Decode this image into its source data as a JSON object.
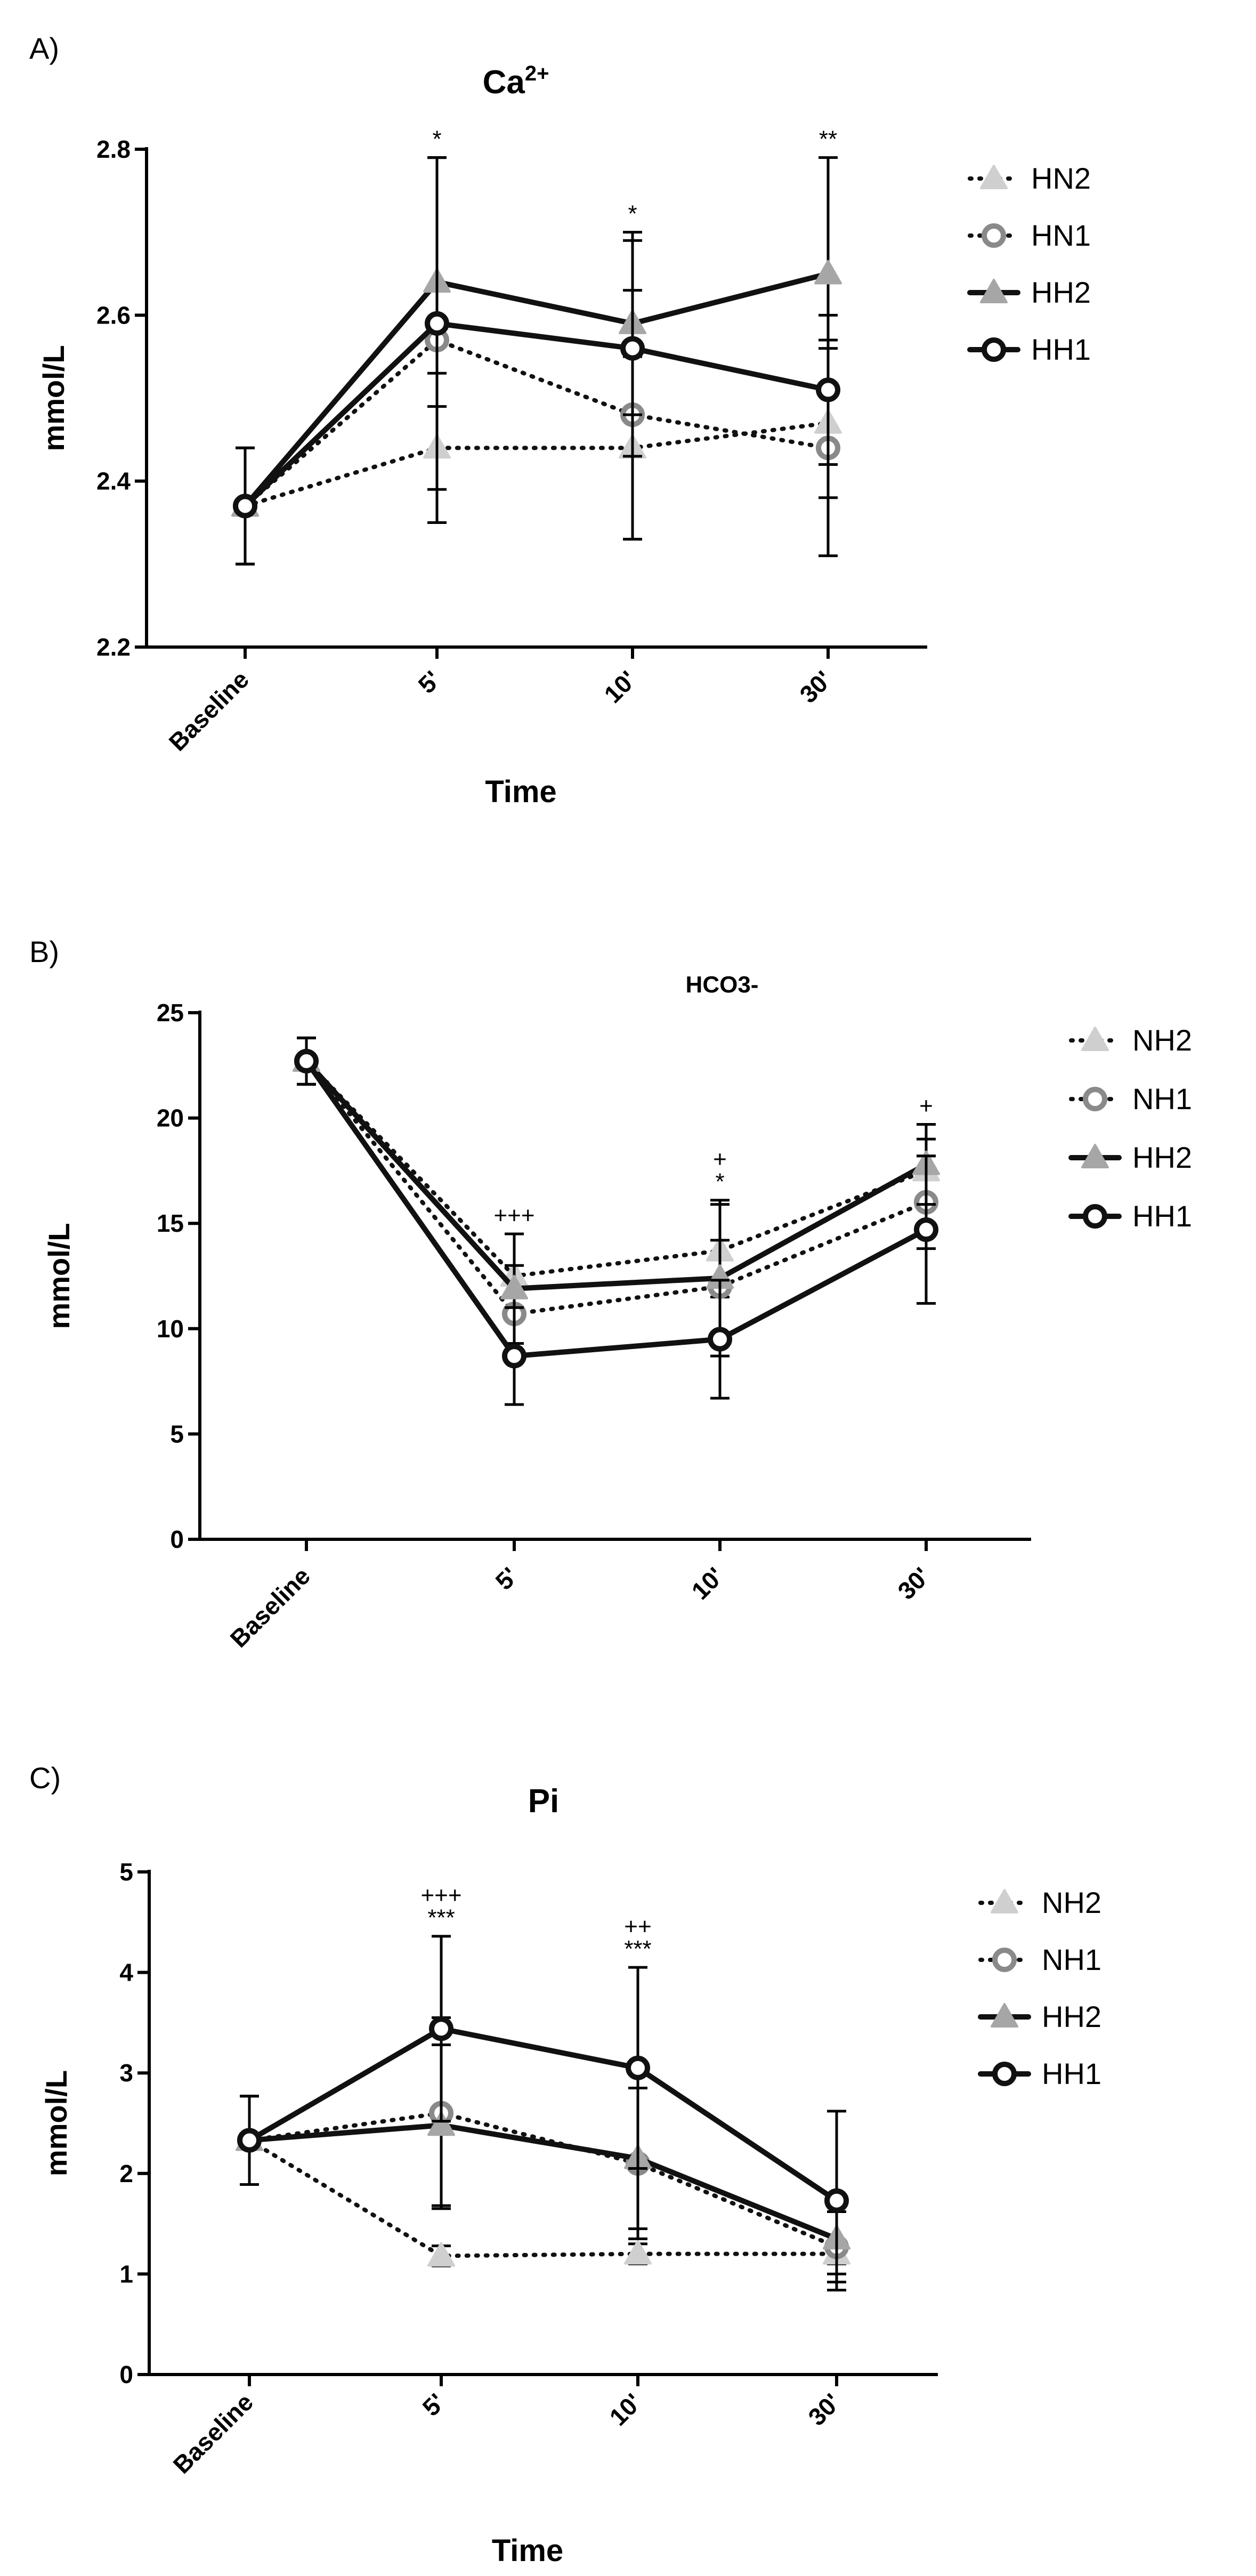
{
  "colors": {
    "light": "#cfcfcf",
    "mid": "#8a8a8a",
    "midlight": "#a6a6a6",
    "dark": "#111111"
  },
  "chart_data": [
    {
      "panel_label": "A)",
      "type": "line",
      "title_main": "Ca",
      "title_sup": "2+",
      "xlabel": "Time",
      "ylabel": "mmol/L",
      "categories": [
        "Baseline",
        "5'",
        "10'",
        "30'"
      ],
      "ylim": [
        2.2,
        2.8
      ],
      "yticks": [
        "2.2",
        "2.4",
        "2.6",
        "2.8"
      ],
      "legend": [
        "HN2",
        "HN1",
        "HH2",
        "HH1"
      ],
      "series": [
        {
          "name": "HN2",
          "values": [
            2.37,
            2.44,
            2.44,
            2.47
          ],
          "err": [
            0.07,
            0.09,
            0.11,
            0.09
          ],
          "style": "light-dotted-triangle"
        },
        {
          "name": "HN1",
          "values": [
            2.37,
            2.57,
            2.48,
            2.44
          ],
          "err": [
            0.07,
            0.22,
            0.15,
            0.13
          ],
          "style": "mid-dotted-circle"
        },
        {
          "name": "HH2",
          "values": [
            2.37,
            2.64,
            2.59,
            2.65
          ],
          "err": [
            0.07,
            0.15,
            0.11,
            0.14
          ],
          "style": "midlight-solid-triangle"
        },
        {
          "name": "HH1",
          "values": [
            2.37,
            2.59,
            2.56,
            2.51
          ],
          "err": [
            0.07,
            0.2,
            0.13,
            0.09
          ],
          "style": "dark-solid-circle"
        }
      ],
      "annotations": [
        {
          "category": 1,
          "lines": [
            "*"
          ]
        },
        {
          "category": 2,
          "lines": [
            "*"
          ]
        },
        {
          "category": 3,
          "lines": [
            "**"
          ]
        }
      ]
    },
    {
      "panel_label": "B)",
      "type": "line",
      "title_main": "HCO3-",
      "title_sup": "",
      "xlabel": "",
      "ylabel": "mmol/L",
      "categories": [
        "Baseline",
        "5'",
        "10'",
        "30'"
      ],
      "ylim": [
        0,
        25
      ],
      "yticks": [
        "0",
        "5",
        "10",
        "15",
        "20",
        "25"
      ],
      "legend": [
        "NH2",
        "NH1",
        "HH2",
        "HH1"
      ],
      "series": [
        {
          "name": "NH2",
          "values": [
            22.7,
            12.5,
            13.7,
            17.5
          ],
          "err": [
            1.1,
            2.0,
            2.2,
            1.5
          ],
          "style": "light-dotted-triangle"
        },
        {
          "name": "NH1",
          "values": [
            22.7,
            10.7,
            12.0,
            16.0
          ],
          "err": [
            1.1,
            2.3,
            2.2,
            2.2
          ],
          "style": "mid-dotted-circle"
        },
        {
          "name": "HH2",
          "values": [
            22.7,
            11.9,
            12.4,
            17.8
          ],
          "err": [
            1.1,
            2.6,
            3.7,
            1.9
          ],
          "style": "midlight-solid-triangle"
        },
        {
          "name": "HH1",
          "values": [
            22.7,
            8.7,
            9.5,
            14.7
          ],
          "err": [
            1.1,
            2.3,
            2.8,
            3.5
          ],
          "style": "dark-solid-circle"
        }
      ],
      "annotations": [
        {
          "category": 1,
          "lines": [
            "+++"
          ]
        },
        {
          "category": 2,
          "lines": [
            "+",
            "*"
          ]
        },
        {
          "category": 3,
          "lines": [
            "+"
          ]
        }
      ]
    },
    {
      "panel_label": "C)",
      "type": "line",
      "title_main": "Pi",
      "title_sup": "",
      "xlabel": "Time",
      "ylabel": "mmol/L",
      "categories": [
        "Baseline",
        "5'",
        "10'",
        "30'"
      ],
      "ylim": [
        0,
        5
      ],
      "yticks": [
        "0",
        "1",
        "2",
        "3",
        "4",
        "5"
      ],
      "legend": [
        "NH2",
        "NH1",
        "HH2",
        "HH1"
      ],
      "series": [
        {
          "name": "NH2",
          "values": [
            2.33,
            1.18,
            1.2,
            1.2
          ],
          "err": [
            0.44,
            0.1,
            0.1,
            0.1
          ],
          "style": "light-dotted-triangle"
        },
        {
          "name": "NH1",
          "values": [
            2.33,
            2.6,
            2.1,
            1.27
          ],
          "err": [
            0.44,
            0.95,
            0.75,
            0.35
          ],
          "style": "mid-dotted-circle"
        },
        {
          "name": "HH2",
          "values": [
            2.33,
            2.48,
            2.15,
            1.35
          ],
          "err": [
            0.44,
            0.8,
            0.7,
            0.35
          ],
          "style": "midlight-solid-triangle"
        },
        {
          "name": "HH1",
          "values": [
            2.33,
            3.44,
            3.05,
            1.73
          ],
          "err": [
            0.44,
            0.92,
            1.0,
            0.89
          ],
          "style": "dark-solid-circle"
        }
      ],
      "annotations": [
        {
          "category": 1,
          "lines": [
            "+++",
            "***"
          ]
        },
        {
          "category": 2,
          "lines": [
            "++",
            "***"
          ]
        }
      ]
    }
  ]
}
